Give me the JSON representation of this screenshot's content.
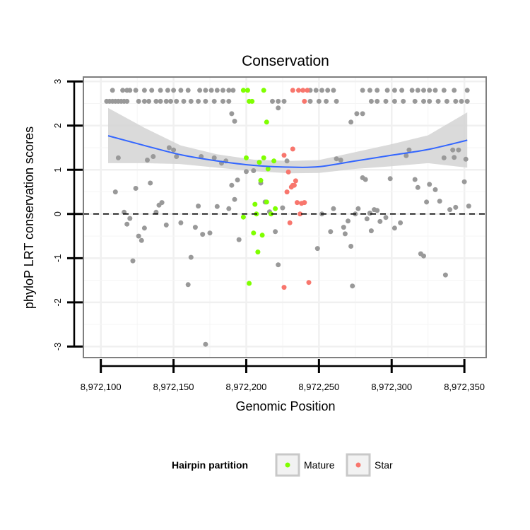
{
  "chart_data": {
    "type": "scatter",
    "title": "Conservation",
    "xlabel": "Genomic Position",
    "ylabel": "phyloP LRT conservation scores",
    "xlim": [
      8972088,
      8972365
    ],
    "ylim": [
      -3.25,
      3.1
    ],
    "x_ticks": [
      8972100,
      8972150,
      8972200,
      8972250,
      8972300,
      8972350
    ],
    "x_tick_labels": [
      "8,972,100",
      "8,972,150",
      "8,972,200",
      "8,972,250",
      "8,972,300",
      "8,972,350"
    ],
    "y_ticks": [
      -3,
      -2,
      -1,
      0,
      1,
      2,
      3
    ],
    "y_tick_labels": [
      "-3",
      "-2",
      "-1",
      "0",
      "1",
      "2",
      "3"
    ],
    "reference_line": {
      "y": 0,
      "style": "dashed"
    },
    "grid": true,
    "legend": {
      "title": "Hairpin partition",
      "position": "bottom",
      "entries": [
        {
          "label": "Mature",
          "color": "#7fff00"
        },
        {
          "label": "Star",
          "color": "#f8766d"
        }
      ]
    },
    "colors": {
      "other": "#999999",
      "smooth_line": "#3366ff",
      "smooth_band": "#d3d3d3"
    },
    "smooth": {
      "x": [
        8972105,
        8972130,
        8972155,
        8972180,
        8972205,
        8972230,
        8972250,
        8972275,
        8972300,
        8972325,
        8972352
      ],
      "y": [
        1.77,
        1.55,
        1.34,
        1.2,
        1.1,
        1.06,
        1.07,
        1.2,
        1.33,
        1.46,
        1.67
      ],
      "lower": [
        1.15,
        1.15,
        1.13,
        1.05,
        0.97,
        0.92,
        0.93,
        1.02,
        1.08,
        1.15,
        1.05
      ],
      "upper": [
        2.4,
        1.95,
        1.55,
        1.35,
        1.23,
        1.2,
        1.22,
        1.4,
        1.58,
        1.78,
        2.3
      ]
    },
    "series": [
      {
        "name": "",
        "points": [
          [
            8972104,
            2.55
          ],
          [
            8972106,
            2.55
          ],
          [
            8972108,
            2.55
          ],
          [
            8972110,
            2.55
          ],
          [
            8972112,
            2.55
          ],
          [
            8972114,
            2.55
          ],
          [
            8972116,
            2.55
          ],
          [
            8972118,
            2.55
          ],
          [
            8972108,
            2.8
          ],
          [
            8972115,
            2.8
          ],
          [
            8972118,
            2.8
          ],
          [
            8972120,
            2.8
          ],
          [
            8972124,
            2.8
          ],
          [
            8972126,
            2.55
          ],
          [
            8972130,
            2.55
          ],
          [
            8972133,
            2.55
          ],
          [
            8972138,
            2.55
          ],
          [
            8972141,
            2.55
          ],
          [
            8972145,
            2.55
          ],
          [
            8972148,
            2.55
          ],
          [
            8972130,
            2.8
          ],
          [
            8972135,
            2.8
          ],
          [
            8972141,
            2.8
          ],
          [
            8972146,
            2.8
          ],
          [
            8972150,
            2.8
          ],
          [
            8972155,
            2.8
          ],
          [
            8972160,
            2.8
          ],
          [
            8972152,
            2.55
          ],
          [
            8972157,
            2.55
          ],
          [
            8972162,
            2.55
          ],
          [
            8972167,
            2.55
          ],
          [
            8972172,
            2.55
          ],
          [
            8972178,
            2.55
          ],
          [
            8972184,
            2.55
          ],
          [
            8972188,
            2.55
          ],
          [
            8972168,
            2.8
          ],
          [
            8972172,
            2.8
          ],
          [
            8972176,
            2.8
          ],
          [
            8972180,
            2.8
          ],
          [
            8972184,
            2.8
          ],
          [
            8972188,
            2.8
          ],
          [
            8972191,
            2.8
          ],
          [
            8972218,
            2.55
          ],
          [
            8972222,
            2.55
          ],
          [
            8972226,
            2.55
          ],
          [
            8972244,
            2.8
          ],
          [
            8972248,
            2.8
          ],
          [
            8972252,
            2.8
          ],
          [
            8972256,
            2.8
          ],
          [
            8972260,
            2.8
          ],
          [
            8972244,
            2.55
          ],
          [
            8972250,
            2.55
          ],
          [
            8972255,
            2.55
          ],
          [
            8972262,
            2.55
          ],
          [
            8972280,
            2.8
          ],
          [
            8972285,
            2.8
          ],
          [
            8972290,
            2.8
          ],
          [
            8972297,
            2.8
          ],
          [
            8972302,
            2.8
          ],
          [
            8972307,
            2.8
          ],
          [
            8972286,
            2.55
          ],
          [
            8972290,
            2.55
          ],
          [
            8972296,
            2.55
          ],
          [
            8972302,
            2.55
          ],
          [
            8972308,
            2.55
          ],
          [
            8972316,
            2.55
          ],
          [
            8972322,
            2.55
          ],
          [
            8972326,
            2.55
          ],
          [
            8972332,
            2.55
          ],
          [
            8972314,
            2.8
          ],
          [
            8972318,
            2.8
          ],
          [
            8972322,
            2.8
          ],
          [
            8972326,
            2.8
          ],
          [
            8972330,
            2.8
          ],
          [
            8972336,
            2.8
          ],
          [
            8972343,
            2.8
          ],
          [
            8972352,
            2.8
          ],
          [
            8972338,
            2.55
          ],
          [
            8972344,
            2.55
          ],
          [
            8972348,
            2.55
          ],
          [
            8972352,
            2.55
          ],
          [
            8972190,
            2.27
          ],
          [
            8972192,
            2.1
          ],
          [
            8972222,
            2.4
          ],
          [
            8972272,
            2.08
          ],
          [
            8972276,
            2.27
          ],
          [
            8972280,
            2.27
          ],
          [
            8972110,
            0.5
          ],
          [
            8972112,
            1.27
          ],
          [
            8972116,
            0.04
          ],
          [
            8972118,
            -0.23
          ],
          [
            8972120,
            -0.1
          ],
          [
            8972122,
            -1.06
          ],
          [
            8972124,
            0.58
          ],
          [
            8972126,
            -0.5
          ],
          [
            8972128,
            -0.6
          ],
          [
            8972130,
            -0.32
          ],
          [
            8972132,
            1.22
          ],
          [
            8972134,
            0.7
          ],
          [
            8972136,
            1.3
          ],
          [
            8972138,
            0.04
          ],
          [
            8972140,
            0.2
          ],
          [
            8972142,
            0.26
          ],
          [
            8972145,
            -0.25
          ],
          [
            8972147,
            1.5
          ],
          [
            8972150,
            1.45
          ],
          [
            8972152,
            1.3
          ],
          [
            8972155,
            -0.2
          ],
          [
            8972160,
            -1.6
          ],
          [
            8972162,
            -0.98
          ],
          [
            8972165,
            -0.3
          ],
          [
            8972167,
            0.18
          ],
          [
            8972169,
            1.3
          ],
          [
            8972170,
            -0.46
          ],
          [
            8972172,
            -2.95
          ],
          [
            8972175,
            -0.43
          ],
          [
            8972178,
            1.27
          ],
          [
            8972180,
            0.17
          ],
          [
            8972183,
            1.15
          ],
          [
            8972186,
            1.2
          ],
          [
            8972188,
            0.12
          ],
          [
            8972190,
            0.65
          ],
          [
            8972192,
            0.33
          ],
          [
            8972194,
            0.77
          ],
          [
            8972195,
            -0.58
          ],
          [
            8972200,
            0.96
          ],
          [
            8972205,
            0.98
          ],
          [
            8972210,
            0.7
          ],
          [
            8972213,
            0.27
          ],
          [
            8972216,
            0.05
          ],
          [
            8972220,
            -0.4
          ],
          [
            8972222,
            -1.15
          ],
          [
            8972225,
            0.14
          ],
          [
            8972228,
            1.2
          ],
          [
            8972249,
            -0.78
          ],
          [
            8972252,
            0.0
          ],
          [
            8972258,
            -0.4
          ],
          [
            8972260,
            0.12
          ],
          [
            8972262,
            1.25
          ],
          [
            8972265,
            1.22
          ],
          [
            8972267,
            -0.3
          ],
          [
            8972268,
            -0.45
          ],
          [
            8972270,
            -0.16
          ],
          [
            8972272,
            -0.73
          ],
          [
            8972273,
            -1.63
          ],
          [
            8972275,
            0.0
          ],
          [
            8972277,
            0.12
          ],
          [
            8972280,
            0.82
          ],
          [
            8972282,
            0.78
          ],
          [
            8972283,
            -0.11
          ],
          [
            8972285,
            0.02
          ],
          [
            8972286,
            -0.38
          ],
          [
            8972288,
            0.1
          ],
          [
            8972290,
            0.08
          ],
          [
            8972292,
            -0.17
          ],
          [
            8972296,
            -0.08
          ],
          [
            8972299,
            0.8
          ],
          [
            8972302,
            -0.32
          ],
          [
            8972306,
            -0.2
          ],
          [
            8972310,
            1.32
          ],
          [
            8972312,
            1.45
          ],
          [
            8972316,
            0.78
          ],
          [
            8972318,
            0.6
          ],
          [
            8972320,
            -0.9
          ],
          [
            8972322,
            -0.95
          ],
          [
            8972324,
            0.27
          ],
          [
            8972326,
            0.67
          ],
          [
            8972330,
            0.55
          ],
          [
            8972333,
            0.29
          ],
          [
            8972336,
            1.27
          ],
          [
            8972337,
            -1.38
          ],
          [
            8972340,
            0.1
          ],
          [
            8972342,
            1.45
          ],
          [
            8972343,
            1.28
          ],
          [
            8972344,
            0.15
          ],
          [
            8972346,
            1.45
          ],
          [
            8972350,
            0.73
          ],
          [
            8972351,
            1.24
          ],
          [
            8972353,
            0.18
          ]
        ]
      },
      {
        "name": "Mature",
        "points": [
          [
            8972198,
            2.8
          ],
          [
            8972201,
            2.8
          ],
          [
            8972202,
            2.55
          ],
          [
            8972204,
            2.55
          ],
          [
            8972212,
            2.8
          ],
          [
            8972214,
            2.08
          ],
          [
            8972198,
            -0.07
          ],
          [
            8972200,
            1.27
          ],
          [
            8972202,
            -1.57
          ],
          [
            8972205,
            -0.43
          ],
          [
            8972206,
            0.22
          ],
          [
            8972207,
            0.0
          ],
          [
            8972208,
            -0.86
          ],
          [
            8972209,
            1.17
          ],
          [
            8972210,
            0.76
          ],
          [
            8972211,
            -0.48
          ],
          [
            8972212,
            1.27
          ],
          [
            8972214,
            0.27
          ],
          [
            8972215,
            1.02
          ],
          [
            8972217,
            0.0
          ],
          [
            8972219,
            1.2
          ],
          [
            8972220,
            0.12
          ]
        ]
      },
      {
        "name": "Star",
        "points": [
          [
            8972232,
            2.8
          ],
          [
            8972236,
            2.8
          ],
          [
            8972239,
            2.8
          ],
          [
            8972242,
            2.8
          ],
          [
            8972240,
            2.55
          ],
          [
            8972226,
            1.33
          ],
          [
            8972228,
            0.5
          ],
          [
            8972229,
            0.95
          ],
          [
            8972230,
            -0.2
          ],
          [
            8972231,
            0.61
          ],
          [
            8972232,
            1.47
          ],
          [
            8972232,
            0.65
          ],
          [
            8972233,
            0.65
          ],
          [
            8972234,
            0.75
          ],
          [
            8972235,
            0.26
          ],
          [
            8972237,
            0.0
          ],
          [
            8972238,
            0.24
          ],
          [
            8972240,
            0.26
          ],
          [
            8972226,
            -1.66
          ],
          [
            8972243,
            -1.55
          ]
        ]
      }
    ]
  }
}
